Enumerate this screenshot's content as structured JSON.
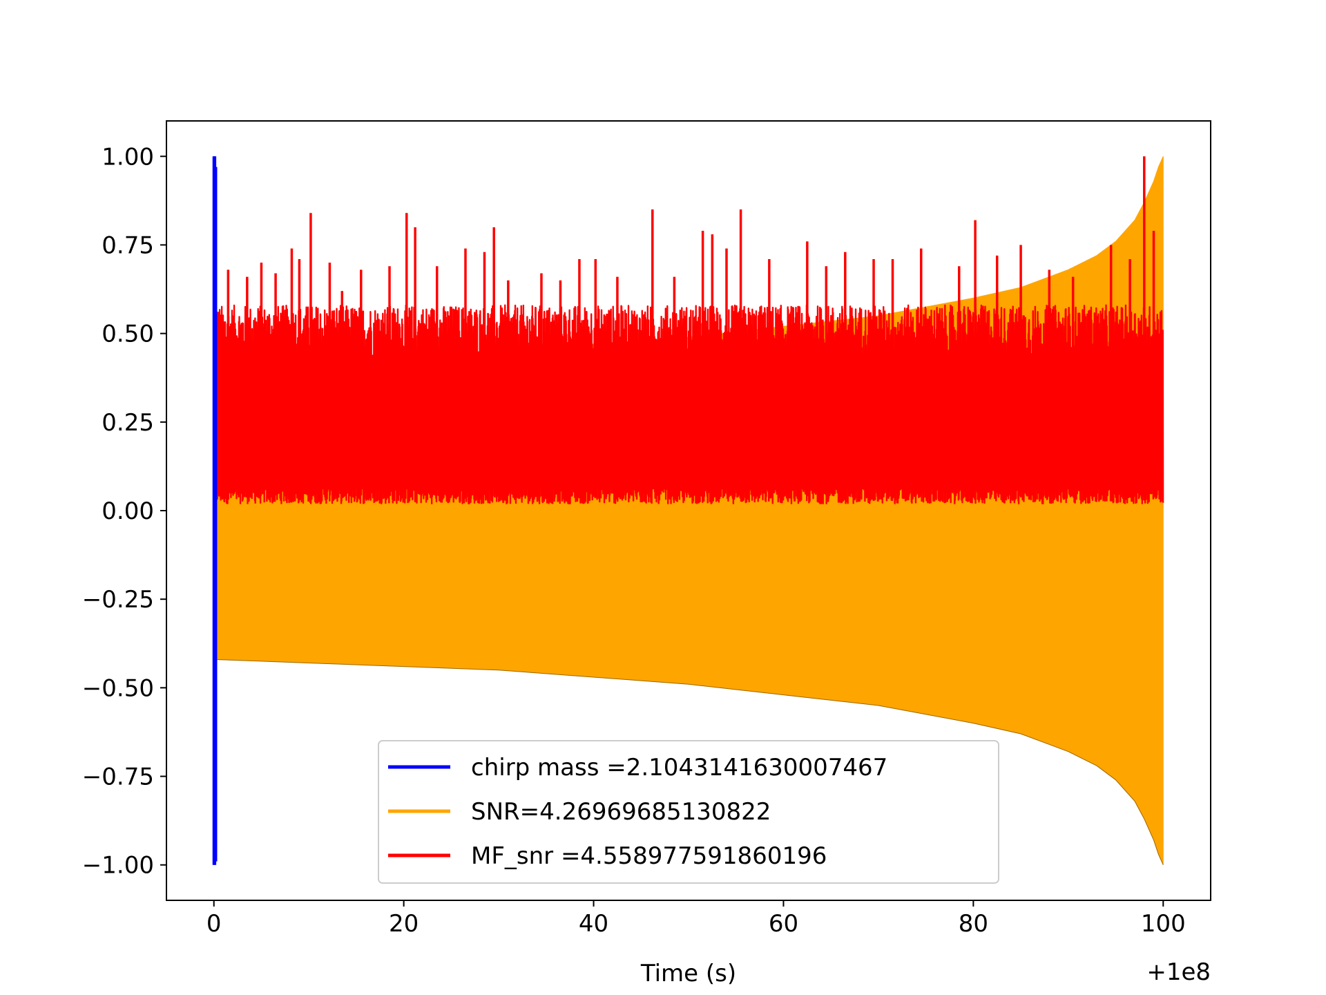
{
  "chart_data": {
    "type": "line",
    "title": "",
    "xlabel": "Time (s)",
    "ylabel": "",
    "x_offset_label": "+1e8",
    "xlim": [
      -5,
      105
    ],
    "ylim": [
      -1.1,
      1.1
    ],
    "xticks": [
      0,
      20,
      40,
      60,
      80,
      100
    ],
    "xtick_labels": [
      "0",
      "20",
      "40",
      "60",
      "80",
      "100"
    ],
    "yticks": [
      1.0,
      0.75,
      0.5,
      0.25,
      0.0,
      -0.25,
      -0.5,
      -0.75,
      -1.0
    ],
    "ytick_labels": [
      "1.00",
      "0.75",
      "0.50",
      "0.25",
      "0.00",
      "−0.25",
      "−0.50",
      "−0.75",
      "−1.00"
    ],
    "grid": false,
    "legend_position": "lower-center",
    "series": [
      {
        "name": "chirp mass =2.1043141630007467",
        "color": "#0000ff",
        "kind": "spike",
        "x": [
          0.0,
          0.0,
          0.1,
          0.1,
          0.2,
          0.2
        ],
        "y": [
          1.0,
          -1.0,
          1.0,
          -1.0,
          0.97,
          -0.99
        ]
      },
      {
        "name": "SNR=4.26969685130822",
        "color": "#ffa500",
        "kind": "envelope",
        "x": [
          0,
          10,
          20,
          30,
          40,
          50,
          60,
          70,
          80,
          85,
          90,
          93,
          95,
          97,
          98,
          99,
          99.5,
          100
        ],
        "upper": [
          0.42,
          0.43,
          0.44,
          0.45,
          0.47,
          0.49,
          0.52,
          0.55,
          0.6,
          0.63,
          0.68,
          0.72,
          0.76,
          0.82,
          0.87,
          0.93,
          0.97,
          1.0
        ],
        "lower": [
          -0.42,
          -0.43,
          -0.44,
          -0.45,
          -0.47,
          -0.49,
          -0.52,
          -0.55,
          -0.6,
          -0.63,
          -0.68,
          -0.72,
          -0.76,
          -0.82,
          -0.87,
          -0.93,
          -0.97,
          -1.0
        ]
      },
      {
        "name": "MF_snr =4.558977591860196",
        "color": "#ff0000",
        "kind": "noise",
        "x_range": [
          0,
          100
        ],
        "band_low": 0.02,
        "band_high": 0.5,
        "peaks_x": [
          0.5,
          1.5,
          3.5,
          5.0,
          6.5,
          8.2,
          9.0,
          10.2,
          12.2,
          13.5,
          15.5,
          18.5,
          20.3,
          21.2,
          23.5,
          26.5,
          28.5,
          29.5,
          31.0,
          34.5,
          36.5,
          38.5,
          40.2,
          42.5,
          46.2,
          48.5,
          51.5,
          52.5,
          54.0,
          55.5,
          58.5,
          62.5,
          64.5,
          66.5,
          69.5,
          71.5,
          74.5,
          78.5,
          80.2,
          82.5,
          85.0,
          88.0,
          90.5,
          94.5,
          96.5,
          98.0,
          99.0
        ],
        "peaks_y": [
          0.56,
          0.68,
          0.66,
          0.7,
          0.67,
          0.74,
          0.71,
          0.84,
          0.7,
          0.62,
          0.68,
          0.69,
          0.84,
          0.8,
          0.69,
          0.74,
          0.73,
          0.8,
          0.65,
          0.67,
          0.65,
          0.71,
          0.71,
          0.66,
          0.85,
          0.66,
          0.79,
          0.78,
          0.74,
          0.85,
          0.71,
          0.76,
          0.69,
          0.73,
          0.71,
          0.71,
          0.74,
          0.69,
          0.82,
          0.72,
          0.75,
          0.68,
          0.66,
          0.75,
          0.71,
          1.0,
          0.79
        ]
      }
    ]
  }
}
